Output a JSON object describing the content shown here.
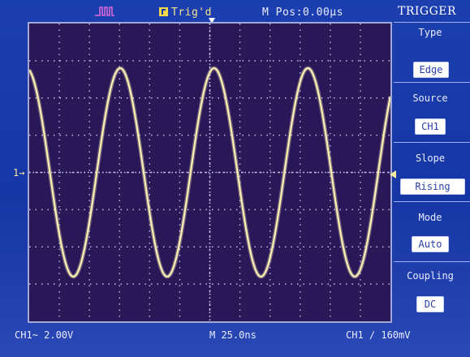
{
  "colors": {
    "trace": "#fbf0b0",
    "grid": "#d7dcff",
    "screen_bg": "#2a1758",
    "frame": "#1536a4"
  },
  "top_bar": {
    "run_icon": "pulse-icon",
    "trigger_status": "Trig'd",
    "main_position": "M Pos:0.00µs",
    "menu_title": "TRIGGER"
  },
  "markers": {
    "channel_marker": "1→"
  },
  "side_menu": {
    "items": [
      {
        "label": "Type",
        "value": "Edge"
      },
      {
        "label": "Source",
        "value": "CH1"
      },
      {
        "label": "Slope",
        "value": "Rising"
      },
      {
        "label": "Mode",
        "value": "Auto"
      },
      {
        "label": "Coupling",
        "value": "DC"
      }
    ]
  },
  "bottom_bar": {
    "ch1_scale": "CH1~ 2.00V",
    "timebase": "M 25.0ns",
    "trigger_info": "CH1 ∕ 160mV"
  },
  "chart_data": {
    "type": "line",
    "grid": true,
    "divisions": {
      "x": 12,
      "y": 8
    },
    "series": [
      {
        "cycles": 3.85,
        "amplitude_div": 2.8,
        "phase_at_left": 0.28
      }
    ]
  }
}
